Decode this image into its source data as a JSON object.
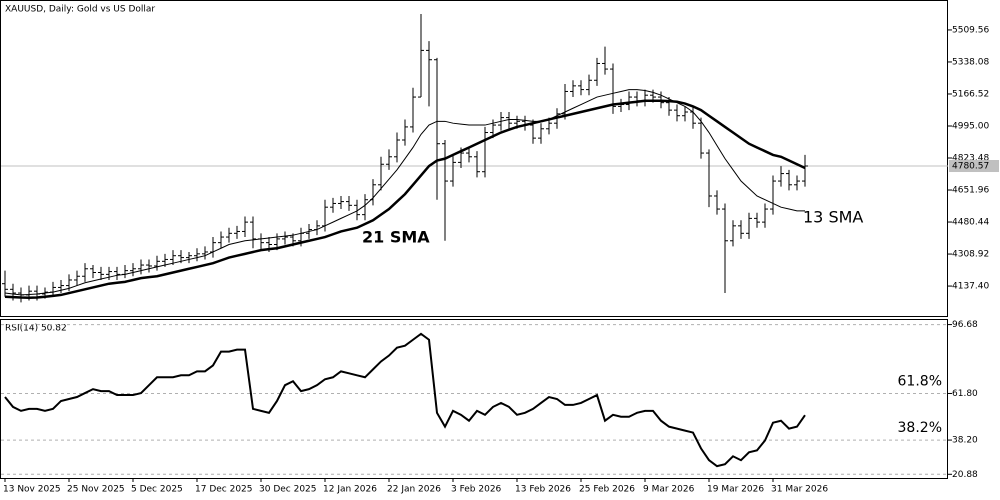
{
  "chart_data": [
    {
      "type": "ohlc",
      "title": "XAUUSD, Daily:  Gold vs US Dollar",
      "color": "#000000",
      "open": [
        4150,
        4120,
        4100,
        4090,
        4110,
        4095,
        4105,
        4130,
        4140,
        4170,
        4190,
        4230,
        4210,
        4200,
        4215,
        4200,
        4220,
        4230,
        4250,
        4245,
        4270,
        4280,
        4300,
        4290,
        4300,
        4310,
        4320,
        4370,
        4400,
        4420,
        4430,
        4480,
        4390,
        4370,
        4360,
        4390,
        4400,
        4380,
        4420,
        4440,
        4460,
        4560,
        4580,
        4590,
        4570,
        4520,
        4600,
        4680,
        4790,
        4830,
        4920,
        4990,
        5150,
        5400,
        5350,
        4900,
        4700,
        4800,
        4850,
        4830,
        4750,
        4960,
        5000,
        5040,
        5010,
        5020,
        5000,
        4930,
        4980,
        5010,
        5060,
        5180,
        5210,
        5190,
        5240,
        5330,
        5300,
        5100,
        5110,
        5150,
        5130,
        5160,
        5150,
        5120,
        5080,
        5050,
        5070,
        5010,
        4850,
        4620,
        4550,
        4380,
        4460,
        4420,
        4500,
        4480,
        4550,
        4700,
        4740,
        4680,
        4700
      ],
      "high": [
        4220,
        4150,
        4130,
        4140,
        4140,
        4130,
        4160,
        4170,
        4200,
        4220,
        4260,
        4250,
        4240,
        4240,
        4240,
        4250,
        4260,
        4280,
        4280,
        4300,
        4310,
        4330,
        4330,
        4320,
        4340,
        4350,
        4400,
        4430,
        4450,
        4460,
        4510,
        4510,
        4420,
        4400,
        4420,
        4430,
        4420,
        4450,
        4470,
        4490,
        4600,
        4610,
        4620,
        4620,
        4600,
        4630,
        4710,
        4830,
        4870,
        4960,
        5030,
        5200,
        5595,
        5450,
        5360,
        4920,
        4840,
        4880,
        4880,
        4860,
        4990,
        5030,
        5070,
        5070,
        5050,
        5050,
        5030,
        5010,
        5040,
        5090,
        5220,
        5240,
        5240,
        5270,
        5360,
        5420,
        5330,
        5140,
        5180,
        5180,
        5190,
        5190,
        5180,
        5150,
        5110,
        5100,
        5100,
        5040,
        4870,
        4650,
        4580,
        4490,
        4490,
        4530,
        4530,
        4580,
        4730,
        4780,
        4760,
        4730,
        4840
      ],
      "low": [
        4080,
        4060,
        4050,
        4060,
        4060,
        4070,
        4080,
        4100,
        4110,
        4140,
        4160,
        4180,
        4170,
        4170,
        4170,
        4180,
        4190,
        4200,
        4210,
        4220,
        4240,
        4250,
        4260,
        4260,
        4270,
        4280,
        4290,
        4340,
        4370,
        4390,
        4400,
        4340,
        4330,
        4320,
        4330,
        4360,
        4350,
        4350,
        4390,
        4410,
        4430,
        4530,
        4550,
        4540,
        4490,
        4490,
        4570,
        4650,
        4760,
        4800,
        4890,
        4960,
        5150,
        5100,
        4600,
        4380,
        4670,
        4770,
        4800,
        4720,
        4720,
        4930,
        4970,
        4980,
        4980,
        4970,
        4900,
        4900,
        4950,
        4980,
        5030,
        5150,
        5160,
        5160,
        5210,
        5270,
        5060,
        5070,
        5080,
        5100,
        5100,
        5120,
        5090,
        5050,
        5020,
        5020,
        4980,
        4820,
        4560,
        4520,
        4100,
        4350,
        4390,
        4390,
        4450,
        4450,
        4520,
        4670,
        4650,
        4650,
        4670
      ],
      "close": [
        4120,
        4100,
        4090,
        4110,
        4095,
        4105,
        4130,
        4140,
        4170,
        4190,
        4230,
        4210,
        4200,
        4215,
        4200,
        4220,
        4230,
        4250,
        4245,
        4270,
        4280,
        4300,
        4290,
        4300,
        4310,
        4320,
        4370,
        4400,
        4420,
        4430,
        4480,
        4390,
        4370,
        4360,
        4390,
        4400,
        4380,
        4420,
        4440,
        4460,
        4560,
        4580,
        4590,
        4570,
        4520,
        4600,
        4680,
        4790,
        4830,
        4920,
        4990,
        5150,
        5400,
        5350,
        4900,
        4700,
        4800,
        4850,
        4830,
        4750,
        4960,
        5000,
        5040,
        5010,
        5020,
        5000,
        4930,
        4980,
        5010,
        5060,
        5180,
        5210,
        5190,
        5240,
        5330,
        5300,
        5100,
        5110,
        5150,
        5130,
        5160,
        5150,
        5120,
        5080,
        5050,
        5070,
        5010,
        4850,
        4620,
        4550,
        4380,
        4460,
        4420,
        4500,
        4480,
        4550,
        4700,
        4740,
        4680,
        4700,
        4780.57
      ],
      "series": [
        {
          "name": "21 SMA",
          "color": "#000000",
          "values": [
            4080,
            4078,
            4076,
            4075,
            4076,
            4080,
            4085,
            4090,
            4100,
            4110,
            4120,
            4130,
            4140,
            4150,
            4155,
            4160,
            4170,
            4180,
            4185,
            4190,
            4200,
            4210,
            4220,
            4230,
            4240,
            4250,
            4260,
            4275,
            4290,
            4300,
            4310,
            4320,
            4330,
            4335,
            4340,
            4350,
            4360,
            4370,
            4380,
            4390,
            4400,
            4415,
            4430,
            4440,
            4450,
            4470,
            4490,
            4520,
            4550,
            4590,
            4630,
            4680,
            4730,
            4780,
            4810,
            4820,
            4840,
            4860,
            4880,
            4900,
            4920,
            4940,
            4960,
            4975,
            4990,
            5000,
            5010,
            5020,
            5030,
            5040,
            5050,
            5060,
            5070,
            5080,
            5090,
            5100,
            5110,
            5115,
            5120,
            5125,
            5130,
            5130,
            5130,
            5128,
            5125,
            5115,
            5100,
            5080,
            5050,
            5020,
            4990,
            4960,
            4930,
            4900,
            4880,
            4860,
            4840,
            4830,
            4810,
            4790,
            4770
          ]
        },
        {
          "name": "13 SMA",
          "color": "#000000",
          "values": [
            4100,
            4095,
            4090,
            4092,
            4095,
            4100,
            4105,
            4115,
            4125,
            4140,
            4155,
            4165,
            4175,
            4185,
            4195,
            4200,
            4210,
            4220,
            4230,
            4240,
            4250,
            4260,
            4270,
            4280,
            4290,
            4300,
            4320,
            4340,
            4360,
            4370,
            4380,
            4385,
            4390,
            4395,
            4400,
            4405,
            4410,
            4420,
            4430,
            4440,
            4460,
            4480,
            4500,
            4520,
            4540,
            4570,
            4610,
            4660,
            4710,
            4760,
            4820,
            4880,
            4950,
            5000,
            5020,
            5020,
            5010,
            5005,
            5000,
            5000,
            5000,
            5010,
            5020,
            5030,
            5030,
            5025,
            5020,
            5020,
            5030,
            5050,
            5070,
            5090,
            5110,
            5130,
            5150,
            5160,
            5170,
            5180,
            5190,
            5190,
            5185,
            5175,
            5160,
            5140,
            5120,
            5100,
            5070,
            5020,
            4960,
            4890,
            4820,
            4760,
            4700,
            4660,
            4620,
            4600,
            4580,
            4560,
            4550,
            4540,
            4540
          ]
        }
      ],
      "ylim": [
        3977,
        5670
      ],
      "yticks": [
        5509.56,
        5338.08,
        5166.52,
        {
          "value": 4995,
          "label": "4995.00"
        },
        4823.48,
        4651.96,
        4480.44,
        4308.92,
        {
          "value": 4137.4,
          "label": "4137.40"
        }
      ]
    },
    {
      "type": "line",
      "title": "RSI(14) 50.82",
      "color": "#000000",
      "categories": [
        "13 Nov 2025",
        null,
        null,
        null,
        null,
        null,
        null,
        null,
        "25 Nov 2025",
        null,
        null,
        null,
        null,
        null,
        null,
        null,
        "5 Dec 2025",
        null,
        null,
        null,
        null,
        null,
        null,
        null,
        "17 Dec 2025",
        null,
        null,
        null,
        null,
        null,
        null,
        null,
        "30 Dec 2025",
        null,
        null,
        null,
        null,
        null,
        null,
        null,
        "12 Jan 2026",
        null,
        null,
        null,
        null,
        null,
        null,
        null,
        "22 Jan 2026",
        null,
        null,
        null,
        null,
        null,
        null,
        null,
        "3 Feb 2026",
        null,
        null,
        null,
        null,
        null,
        null,
        null,
        "13 Feb 2026",
        null,
        null,
        null,
        null,
        null,
        null,
        null,
        "25 Feb 2026",
        null,
        null,
        null,
        null,
        null,
        null,
        null,
        "9 Mar 2026",
        null,
        null,
        null,
        null,
        null,
        null,
        null,
        "19 Mar 2026",
        null,
        null,
        null,
        null,
        null,
        null,
        null,
        "31 Mar 2026",
        null,
        null,
        null,
        null
      ],
      "values": [
        60,
        55,
        53,
        54,
        54,
        53,
        54,
        58,
        59,
        60,
        62,
        64,
        63,
        63,
        61,
        61,
        61,
        62,
        66,
        70,
        70,
        70,
        71,
        71,
        73,
        73,
        76,
        83,
        83,
        84,
        84,
        54,
        53,
        52,
        58,
        66,
        68,
        63,
        64,
        66,
        69,
        70,
        73,
        72,
        71,
        70,
        74,
        78,
        81,
        85,
        86,
        89,
        92,
        89,
        52,
        45,
        53,
        51,
        48,
        53,
        51,
        55,
        57,
        55,
        51,
        52,
        54,
        57,
        60,
        59,
        56,
        56,
        57,
        59,
        61,
        48,
        51,
        50,
        50,
        52,
        53,
        53,
        48,
        45,
        44,
        43,
        42,
        34,
        28,
        25,
        26,
        30,
        28,
        32,
        33,
        38,
        47,
        48,
        44,
        45,
        50.82
      ],
      "ylim": [
        19,
        99
      ],
      "yticks": [
        96.68,
        {
          "value": 61.8,
          "label": "61.80"
        },
        {
          "value": 38.2,
          "label": "38.20"
        },
        20.88
      ],
      "levels": [
        {
          "value": 61.8,
          "label": "61.8%"
        },
        {
          "value": 38.2,
          "label": "38.2%"
        }
      ]
    }
  ]
}
